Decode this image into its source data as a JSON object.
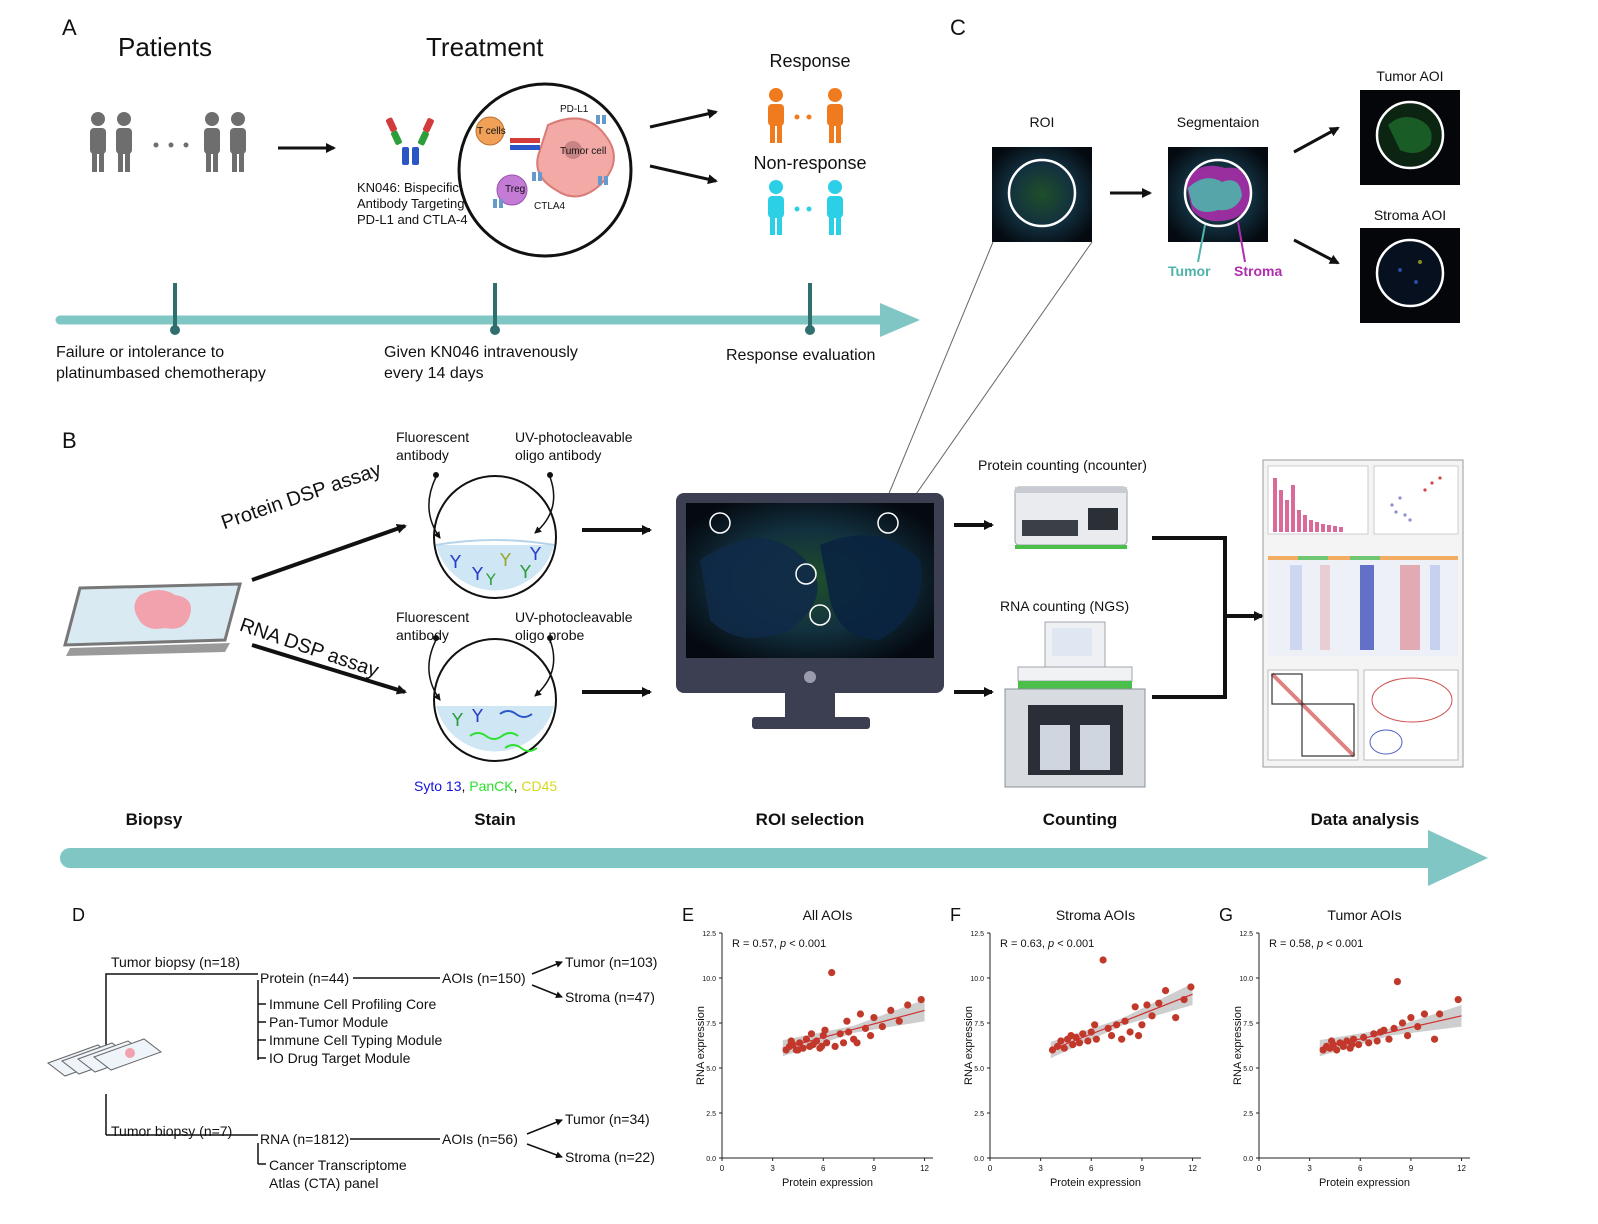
{
  "panels": {
    "A": {
      "letter": "A",
      "patients_title": "Patients",
      "treatment_title": "Treatment",
      "response_label": "Response",
      "nonresponse_label": "Non-response",
      "drug_caption": [
        "KN046:  Bispecific",
        "Antibody Targeting",
        "PD-L1 and CTLA-4"
      ],
      "cell_labels": {
        "tcell": "T cells",
        "tumor": "Tumor cell",
        "treg": "Treg",
        "pdl1": "PD-L1",
        "ctla4": "CTLA4"
      },
      "timeline": [
        {
          "lines": [
            "Failure or intolerance to",
            "platinumbased chemotherapy"
          ]
        },
        {
          "lines": [
            "Given KN046 intravenously",
            "every 14 days"
          ]
        },
        {
          "lines": [
            "Response evaluation"
          ]
        }
      ]
    },
    "C": {
      "letter": "C",
      "roi": "ROI",
      "segmentation": "Segmentaion",
      "tumor_aoi": "Tumor AOI",
      "stroma_aoi": "Stroma AOI",
      "tumor_label": "Tumor",
      "stroma_label": "Stroma"
    },
    "B": {
      "letter": "B",
      "protein_assay": "Protein DSP assay",
      "rna_assay": "RNA DSP assay",
      "fluor_ab_1": [
        "Fluorescent",
        "antibody"
      ],
      "uv_ab": [
        "UV-photocleavable",
        "oligo antibody"
      ],
      "fluor_ab_2": [
        "Fluorescent",
        "antibody"
      ],
      "uv_probe": [
        "UV-photocleavable",
        "oligo probe"
      ],
      "stains": {
        "syto": "Syto 13",
        "sep1": ", ",
        "panck": "PanCK",
        "sep2": ", ",
        "cd45": "CD45"
      },
      "protein_counting": "Protein counting (ncounter)",
      "rna_counting": "RNA counting (NGS)",
      "steps": [
        "Biopsy",
        "Stain",
        "ROI selection",
        "Counting",
        "Data analysis"
      ]
    },
    "D": {
      "letter": "D",
      "tumor_biopsy_protein": "Tumor biopsy (n=18)",
      "protein": "Protein (n=44)",
      "aois_protein": "AOIs (n=150)",
      "tumor_protein": "Tumor (n=103)",
      "stroma_protein": "Stroma (n=47)",
      "modules": [
        "Immune Cell Profiling Core",
        "Pan-Tumor Module",
        "Immune Cell Typing Module",
        "IO Drug Target Module"
      ],
      "tumor_biopsy_rna": "Tumor biopsy (n=7)",
      "rna": "RNA (n=1812)",
      "aois_rna": "AOIs (n=56)",
      "tumor_rna": "Tumor (n=34)",
      "stroma_rna": "Stroma (n=22)",
      "cta": [
        "Cancer Transcriptome",
        "Atlas (CTA) panel"
      ]
    }
  },
  "scatter_plots": [
    {
      "letter": "E",
      "title": "All AOIs",
      "stat": "R = 0.57, ",
      "p": "p",
      "stat_tail": " < 0.001",
      "xlabel": "Protein expression",
      "ylabel": "RNA expression",
      "xticks": [
        "0",
        "3",
        "6",
        "9",
        "12"
      ],
      "yticks": [
        "0.0",
        "2.5",
        "5.0",
        "7.5",
        "10.0",
        "12.5"
      ],
      "xlim": [
        0,
        12.5
      ],
      "ylim": [
        0,
        12.5
      ],
      "points": [
        [
          3.8,
          6.0
        ],
        [
          4.0,
          6.2
        ],
        [
          4.2,
          6.3
        ],
        [
          4.4,
          6.0
        ],
        [
          4.6,
          6.4
        ],
        [
          4.8,
          6.1
        ],
        [
          5.0,
          6.6
        ],
        [
          5.2,
          6.2
        ],
        [
          5.4,
          6.3
        ],
        [
          5.6,
          6.5
        ],
        [
          5.8,
          6.1
        ],
        [
          6.0,
          6.8
        ],
        [
          6.2,
          6.4
        ],
        [
          6.5,
          10.3
        ],
        [
          6.7,
          6.2
        ],
        [
          7.0,
          6.9
        ],
        [
          7.2,
          6.4
        ],
        [
          7.5,
          7.0
        ],
        [
          7.8,
          6.6
        ],
        [
          8.0,
          6.4
        ],
        [
          8.5,
          7.2
        ],
        [
          8.8,
          6.8
        ],
        [
          9.0,
          7.8
        ],
        [
          9.5,
          7.3
        ],
        [
          10.0,
          8.2
        ],
        [
          10.5,
          7.6
        ],
        [
          11.0,
          8.5
        ],
        [
          11.8,
          8.8
        ],
        [
          4.1,
          6.5
        ],
        [
          5.3,
          6.9
        ],
        [
          6.1,
          7.1
        ],
        [
          7.4,
          7.6
        ],
        [
          4.5,
          6.0
        ],
        [
          5.9,
          6.2
        ],
        [
          8.2,
          8.0
        ]
      ],
      "fit": [
        [
          3.6,
          6.1
        ],
        [
          12.0,
          8.2
        ]
      ]
    },
    {
      "letter": "F",
      "title": "Stroma AOIs",
      "stat": "R = 0.63, ",
      "p": "p",
      "stat_tail": " < 0.001",
      "xlabel": "Protein expression",
      "ylabel": "RNA expression",
      "xticks": [
        "0",
        "3",
        "6",
        "9",
        "12"
      ],
      "yticks": [
        "0.0",
        "2.5",
        "5.0",
        "7.5",
        "10.0",
        "12.5"
      ],
      "xlim": [
        0,
        12.5
      ],
      "ylim": [
        0,
        12.5
      ],
      "points": [
        [
          3.7,
          6.0
        ],
        [
          4.0,
          6.2
        ],
        [
          4.2,
          6.5
        ],
        [
          4.4,
          6.1
        ],
        [
          4.6,
          6.6
        ],
        [
          4.9,
          6.3
        ],
        [
          5.1,
          6.7
        ],
        [
          5.3,
          6.4
        ],
        [
          5.5,
          6.9
        ],
        [
          5.8,
          6.5
        ],
        [
          6.0,
          7.0
        ],
        [
          6.3,
          6.6
        ],
        [
          6.7,
          11.0
        ],
        [
          7.0,
          7.2
        ],
        [
          7.2,
          6.8
        ],
        [
          7.5,
          7.4
        ],
        [
          7.8,
          6.6
        ],
        [
          8.0,
          7.6
        ],
        [
          8.3,
          7.0
        ],
        [
          8.6,
          8.4
        ],
        [
          9.0,
          7.4
        ],
        [
          9.3,
          8.5
        ],
        [
          9.6,
          7.9
        ],
        [
          10.0,
          8.6
        ],
        [
          10.4,
          9.3
        ],
        [
          11.0,
          7.8
        ],
        [
          11.5,
          8.8
        ],
        [
          11.9,
          9.5
        ],
        [
          4.8,
          6.8
        ],
        [
          6.2,
          7.4
        ],
        [
          8.8,
          6.8
        ]
      ],
      "fit": [
        [
          3.6,
          6.0
        ],
        [
          12.0,
          9.1
        ]
      ]
    },
    {
      "letter": "G",
      "title": "Tumor AOIs",
      "stat": "R = 0.58, ",
      "p": "p",
      "stat_tail": " < 0.001",
      "xlabel": "Protein expression",
      "ylabel": "RNA expression",
      "xticks": [
        "0",
        "3",
        "6",
        "9",
        "12"
      ],
      "yticks": [
        "0.0",
        "2.5",
        "5.0",
        "7.5",
        "10.0",
        "12.5"
      ],
      "xlim": [
        0,
        12.5
      ],
      "ylim": [
        0,
        12.5
      ],
      "points": [
        [
          3.8,
          6.0
        ],
        [
          4.0,
          6.2
        ],
        [
          4.2,
          6.1
        ],
        [
          4.4,
          6.3
        ],
        [
          4.6,
          6.0
        ],
        [
          4.8,
          6.4
        ],
        [
          5.0,
          6.2
        ],
        [
          5.2,
          6.5
        ],
        [
          5.4,
          6.1
        ],
        [
          5.6,
          6.6
        ],
        [
          5.9,
          6.3
        ],
        [
          6.2,
          6.7
        ],
        [
          6.5,
          6.4
        ],
        [
          6.8,
          6.9
        ],
        [
          7.0,
          6.5
        ],
        [
          7.4,
          7.1
        ],
        [
          7.7,
          6.6
        ],
        [
          8.0,
          7.2
        ],
        [
          8.2,
          9.8
        ],
        [
          8.5,
          7.5
        ],
        [
          8.8,
          6.8
        ],
        [
          9.0,
          7.8
        ],
        [
          9.4,
          7.3
        ],
        [
          9.8,
          8.0
        ],
        [
          10.4,
          6.6
        ],
        [
          10.7,
          8.0
        ],
        [
          11.8,
          8.8
        ],
        [
          4.3,
          6.5
        ],
        [
          5.5,
          6.3
        ],
        [
          7.2,
          7.0
        ]
      ],
      "fit": [
        [
          3.6,
          6.1
        ],
        [
          12.0,
          7.9
        ]
      ]
    }
  ],
  "colors": {
    "teal_arrow": "#7fc6c4",
    "teal_tick": "#2f6f6d",
    "orange_person": "#f07b1e",
    "cyan_person": "#2bd0e6",
    "gray_person": "#6e6e6e",
    "tumor_teal": "#4fb3ab",
    "stroma_purple": "#b02db0",
    "syto_blue": "#1414d8",
    "panck_green": "#2ee02e",
    "cd45_yellow": "#d8d820",
    "point_red": "#c0392b",
    "fit_red": "#d03030"
  }
}
